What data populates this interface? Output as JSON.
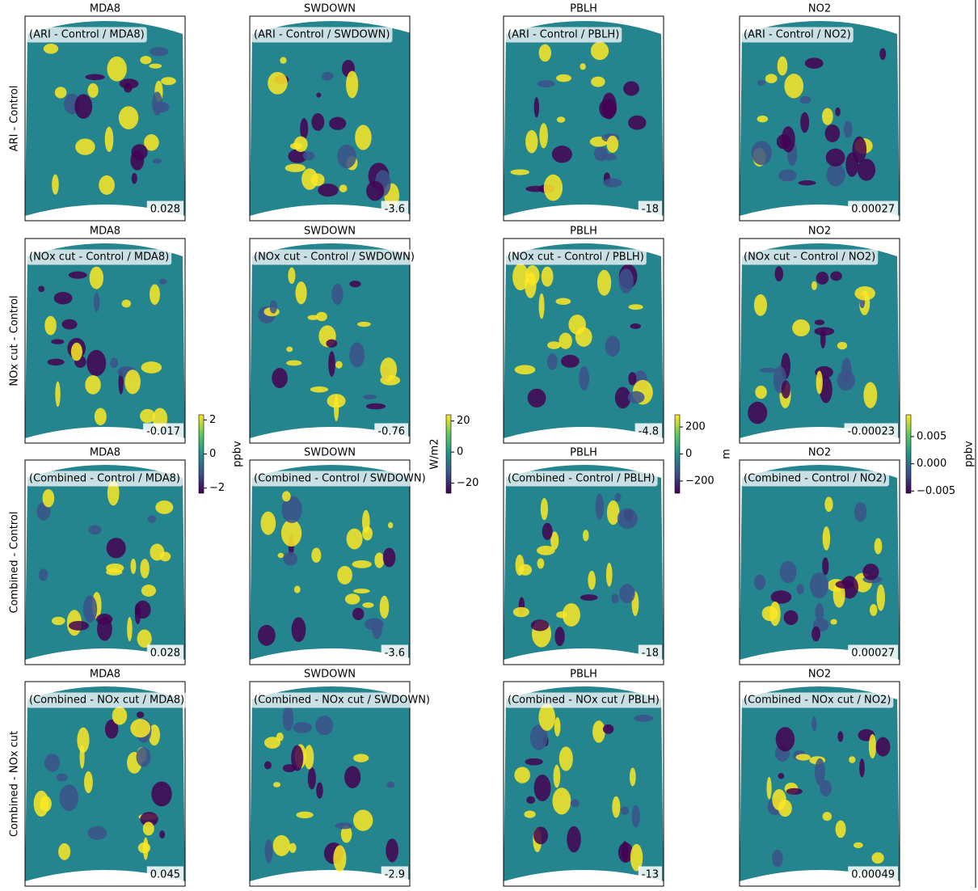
{
  "columns": [
    "MDA8",
    "SWDOWN",
    "PBLH",
    "NO2"
  ],
  "rows": [
    "ARI - Control",
    "NOx cut - Control",
    "Combined - Control",
    "Combined - NOx cut"
  ],
  "panels": [
    [
      {
        "label": "(ARI - Control / MDA8)",
        "value": 0.028
      },
      {
        "label": "(ARI - Control / SWDOWN)",
        "value": -3.6
      },
      {
        "label": "(ARI - Control / PBLH)",
        "value": -18
      },
      {
        "label": "(ARI - Control / NO2)",
        "value": 0.00027
      }
    ],
    [
      {
        "label": "(NOx cut - Control / MDA8)",
        "value": -0.017
      },
      {
        "label": "(NOx cut - Control / SWDOWN)",
        "value": -0.76
      },
      {
        "label": "(NOx cut - Control / PBLH)",
        "value": -4.8
      },
      {
        "label": "(NOx cut - Control / NO2)",
        "value": -0.00023
      }
    ],
    [
      {
        "label": "(Combined - Control / MDA8)",
        "value": 0.028
      },
      {
        "label": "(Combined - Control / SWDOWN)",
        "value": -3.6
      },
      {
        "label": "(Combined - Control / PBLH)",
        "value": -18
      },
      {
        "label": "(Combined - Control / NO2)",
        "value": 0.00027
      }
    ],
    [
      {
        "label": "(Combined - NOx cut / MDA8)",
        "value": 0.045
      },
      {
        "label": "(Combined - NOx cut / SWDOWN)",
        "value": -2.9
      },
      {
        "label": "(Combined - NOx cut / PBLH)",
        "value": -13
      },
      {
        "label": "(Combined - NOx cut / NO2)",
        "value": 0.00049
      }
    ]
  ],
  "colorbars": [
    {
      "unit": "ppbv",
      "lim": [
        -2.3,
        2.3
      ],
      "ticks": [
        {
          "value": -2,
          "label": "−2"
        },
        0,
        2
      ]
    },
    {
      "unit": "W/m2",
      "lim": [
        -26.5,
        24
      ],
      "ticks": [
        {
          "value": -20,
          "label": "−20"
        },
        0,
        20
      ]
    },
    {
      "unit": "m",
      "lim": [
        -290,
        290
      ],
      "ticks": [
        {
          "value": -200,
          "label": "−200"
        },
        0,
        200
      ]
    },
    {
      "unit": "ppbv",
      "lim": [
        -0.0054,
        0.009
      ],
      "ticks": [
        {
          "value": -0.005,
          "label": "−0.005"
        },
        {
          "value": 0,
          "label": "0.000"
        },
        0.005
      ]
    }
  ]
}
